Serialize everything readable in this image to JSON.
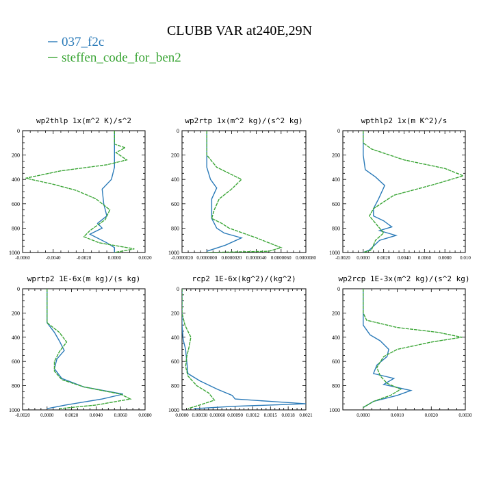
{
  "figure": {
    "title": "CLUBB VAR at240E,29N",
    "background": "#ffffff"
  },
  "legend": [
    {
      "label": "037_f2c",
      "color": "#2a7ab8"
    },
    {
      "label": "steffen_code_for_ben2",
      "color": "#3aa535"
    }
  ],
  "chart_data": [
    {
      "type": "line",
      "title": "wp2thlp   1x(m^2 K)/s^2",
      "xlim": [
        -0.006,
        0.002
      ],
      "ylim": [
        1000,
        0
      ],
      "xticks": [
        "-0.0060",
        "-0.0040",
        "-0.0020",
        "0.0000",
        "0.0020"
      ],
      "xtick_values": [
        -0.006,
        -0.004,
        -0.002,
        0.0,
        0.002
      ],
      "yticks": [
        "0",
        "200",
        "400",
        "600",
        "800",
        "1000"
      ],
      "ytick_values": [
        0,
        200,
        400,
        600,
        800,
        1000
      ],
      "series": [
        {
          "name": "037_f2c",
          "color": "#2a7ab8",
          "points": [
            [
              0.0,
              0
            ],
            [
              0.0,
              100
            ],
            [
              0.0,
              200
            ],
            [
              0.0,
              300
            ],
            [
              -0.0002,
              400
            ],
            [
              -0.0008,
              480
            ],
            [
              -0.0007,
              600
            ],
            [
              -0.0005,
              700
            ],
            [
              -0.0011,
              760
            ],
            [
              -0.0008,
              800
            ],
            [
              -0.0016,
              850
            ],
            [
              -0.0005,
              920
            ],
            [
              0.0,
              960
            ],
            [
              0.0,
              1000
            ]
          ]
        },
        {
          "name": "steffen_code_for_ben2",
          "color": "#3aa535",
          "points": [
            [
              0.0,
              0
            ],
            [
              0.0,
              110
            ],
            [
              0.0007,
              140
            ],
            [
              0.0001,
              180
            ],
            [
              0.0008,
              240
            ],
            [
              -0.0005,
              280
            ],
            [
              -0.0035,
              330
            ],
            [
              -0.0058,
              390
            ],
            [
              -0.004,
              440
            ],
            [
              -0.0025,
              490
            ],
            [
              -0.0012,
              560
            ],
            [
              -0.0003,
              650
            ],
            [
              -0.0006,
              730
            ],
            [
              -0.0016,
              820
            ],
            [
              -0.002,
              870
            ],
            [
              -0.001,
              920
            ],
            [
              0.0013,
              970
            ],
            [
              0.0,
              1000
            ]
          ]
        }
      ]
    },
    {
      "type": "line",
      "title": "wp2rtp   1x(m^2 kg)/(s^2 kg)",
      "xlim": [
        -2e-06,
        8e-06
      ],
      "ylim": [
        1000,
        0
      ],
      "xticks": [
        "-0.0000020",
        "0.0000000",
        "0.0000020",
        "0.0000040",
        "0.0000060",
        "0.0000080"
      ],
      "xtick_values": [
        -2e-06,
        0.0,
        2e-06,
        4e-06,
        6e-06,
        8e-06
      ],
      "yticks": [
        "0",
        "200",
        "400",
        "600",
        "800",
        "1000"
      ],
      "ytick_values": [
        0,
        200,
        400,
        600,
        800,
        1000
      ],
      "series": [
        {
          "name": "037_f2c",
          "color": "#2a7ab8",
          "points": [
            [
              0.0,
              0
            ],
            [
              0.0,
              200
            ],
            [
              0.0,
              300
            ],
            [
              3e-07,
              400
            ],
            [
              8e-07,
              470
            ],
            [
              4e-07,
              560
            ],
            [
              4e-07,
              720
            ],
            [
              8e-07,
              800
            ],
            [
              1.4e-06,
              840
            ],
            [
              2.8e-06,
              880
            ],
            [
              1.5e-06,
              940
            ],
            [
              0.0,
              990
            ]
          ]
        },
        {
          "name": "steffen_code_for_ben2",
          "color": "#3aa535",
          "points": [
            [
              0.0,
              0
            ],
            [
              0.0,
              200
            ],
            [
              8e-07,
              300
            ],
            [
              2.8e-06,
              400
            ],
            [
              2e-06,
              480
            ],
            [
              1e-06,
              560
            ],
            [
              6e-07,
              650
            ],
            [
              4e-07,
              720
            ],
            [
              1.2e-06,
              760
            ],
            [
              1.8e-06,
              800
            ],
            [
              4e-06,
              880
            ],
            [
              6e-06,
              960
            ],
            [
              5e-06,
              990
            ],
            [
              0.0,
              1000
            ]
          ]
        }
      ]
    },
    {
      "type": "line",
      "title": "wpthlp2   1x(m K^2)/s",
      "xlim": [
        -0.002,
        0.01
      ],
      "ylim": [
        1000,
        0
      ],
      "xticks": [
        "-0.0020",
        "0.0000",
        "0.0020",
        "0.0040",
        "0.0060",
        "0.0080",
        "0.010"
      ],
      "xtick_values": [
        -0.002,
        0.0,
        0.002,
        0.004,
        0.006,
        0.008,
        0.01
      ],
      "yticks": [
        "0",
        "200",
        "400",
        "600",
        "800",
        "1000"
      ],
      "ytick_values": [
        0,
        200,
        400,
        600,
        800,
        1000
      ],
      "series": [
        {
          "name": "037_f2c",
          "color": "#2a7ab8",
          "points": [
            [
              0.0,
              0
            ],
            [
              0.0,
              200
            ],
            [
              0.0002,
              320
            ],
            [
              0.0012,
              380
            ],
            [
              0.0021,
              450
            ],
            [
              0.0015,
              560
            ],
            [
              0.001,
              640
            ],
            [
              0.001,
              700
            ],
            [
              0.002,
              740
            ],
            [
              0.0028,
              790
            ],
            [
              0.0016,
              820
            ],
            [
              0.0032,
              860
            ],
            [
              0.0016,
              900
            ],
            [
              0.0006,
              980
            ],
            [
              0.0,
              1000
            ]
          ]
        },
        {
          "name": "steffen_code_for_ben2",
          "color": "#3aa535",
          "points": [
            [
              0.0,
              0
            ],
            [
              0.0,
              100
            ],
            [
              0.0008,
              150
            ],
            [
              0.004,
              240
            ],
            [
              0.008,
              310
            ],
            [
              0.0098,
              370
            ],
            [
              0.007,
              440
            ],
            [
              0.003,
              530
            ],
            [
              0.001,
              640
            ],
            [
              0.0006,
              700
            ],
            [
              0.0014,
              780
            ],
            [
              0.002,
              840
            ],
            [
              0.0012,
              900
            ],
            [
              0.0008,
              980
            ],
            [
              0.0,
              1000
            ]
          ]
        }
      ]
    },
    {
      "type": "line",
      "title": "wprtp2   1E-6x(m kg)/(s kg)",
      "xlim": [
        -0.002,
        0.008
      ],
      "ylim": [
        1000,
        0
      ],
      "xticks": [
        "-0.0020",
        "0.0000",
        "0.0020",
        "0.0040",
        "0.0060",
        "0.0080"
      ],
      "xtick_values": [
        -0.002,
        0.0,
        0.002,
        0.004,
        0.006,
        0.008
      ],
      "yticks": [
        "0",
        "200",
        "400",
        "600",
        "800",
        "1000"
      ],
      "ytick_values": [
        0,
        200,
        400,
        600,
        800,
        1000
      ],
      "series": [
        {
          "name": "037_f2c",
          "color": "#2a7ab8",
          "points": [
            [
              0.0,
              0
            ],
            [
              0.0,
              200
            ],
            [
              0.0,
              280
            ],
            [
              0.0006,
              360
            ],
            [
              0.001,
              430
            ],
            [
              0.0014,
              510
            ],
            [
              0.0008,
              580
            ],
            [
              0.0006,
              660
            ],
            [
              0.0012,
              740
            ],
            [
              0.003,
              810
            ],
            [
              0.0062,
              870
            ],
            [
              0.0045,
              910
            ],
            [
              0.0015,
              960
            ],
            [
              0.0,
              990
            ]
          ]
        },
        {
          "name": "steffen_code_for_ben2",
          "color": "#3aa535",
          "points": [
            [
              0.0,
              0
            ],
            [
              0.0,
              200
            ],
            [
              0.0,
              280
            ],
            [
              0.001,
              360
            ],
            [
              0.0016,
              440
            ],
            [
              0.001,
              520
            ],
            [
              0.0006,
              600
            ],
            [
              0.0006,
              680
            ],
            [
              0.0012,
              750
            ],
            [
              0.003,
              810
            ],
            [
              0.006,
              870
            ],
            [
              0.0068,
              910
            ],
            [
              0.004,
              960
            ],
            [
              0.001,
              990
            ]
          ]
        }
      ]
    },
    {
      "type": "line",
      "title": "rcp2   1E-6x(kg^2)/(kg^2)",
      "xlim": [
        0.0,
        0.0021
      ],
      "ylim": [
        1000,
        0
      ],
      "xticks": [
        "0.0000",
        "0.00030",
        "0.00060",
        "0.00090",
        "0.0012",
        "0.0015",
        "0.0018",
        "0.0021"
      ],
      "xtick_values": [
        0.0,
        0.0003,
        0.0006,
        0.0009,
        0.0012,
        0.0015,
        0.0018,
        0.0021
      ],
      "yticks": [
        "0",
        "200",
        "400",
        "600",
        "800",
        "1000"
      ],
      "ytick_values": [
        0,
        200,
        400,
        600,
        800,
        1000
      ],
      "series": [
        {
          "name": "037_f2c",
          "color": "#2a7ab8",
          "points": [
            [
              0.0,
              0
            ],
            [
              0.0,
              300
            ],
            [
              2e-05,
              420
            ],
            [
              6e-05,
              500
            ],
            [
              8e-05,
              600
            ],
            [
              0.0001,
              700
            ],
            [
              0.0003,
              760
            ],
            [
              0.0006,
              830
            ],
            [
              0.00085,
              880
            ],
            [
              0.0009,
              910
            ],
            [
              0.0015,
              930
            ],
            [
              0.0021,
              950
            ],
            [
              0.0009,
              970
            ],
            [
              0.0002,
              990
            ]
          ]
        },
        {
          "name": "steffen_code_for_ben2",
          "color": "#3aa535",
          "points": [
            [
              0.0,
              0
            ],
            [
              0.0,
              200
            ],
            [
              5e-05,
              300
            ],
            [
              0.00015,
              400
            ],
            [
              0.00012,
              480
            ],
            [
              8e-05,
              560
            ],
            [
              6e-05,
              640
            ],
            [
              0.0001,
              720
            ],
            [
              0.00025,
              800
            ],
            [
              0.00045,
              860
            ],
            [
              0.00055,
              920
            ],
            [
              0.0003,
              960
            ],
            [
              0.0001,
              990
            ]
          ]
        }
      ]
    },
    {
      "type": "line",
      "title": "wp2rcp   1E-3x(m^2 kg)/(s^2 kg)",
      "xlim": [
        -0.0006,
        0.003
      ],
      "ylim": [
        1000,
        0
      ],
      "xticks": [
        "0.0000",
        "0.0010",
        "0.0020",
        "0.0030"
      ],
      "xtick_values": [
        0.0,
        0.001,
        0.002,
        0.003
      ],
      "yticks": [
        "0",
        "200",
        "400",
        "600",
        "800",
        "1000"
      ],
      "ytick_values": [
        0,
        200,
        400,
        600,
        800,
        1000
      ],
      "series": [
        {
          "name": "037_f2c",
          "color": "#2a7ab8",
          "points": [
            [
              0.0,
              0
            ],
            [
              0.0,
              200
            ],
            [
              0.0,
              300
            ],
            [
              0.0002,
              380
            ],
            [
              0.0005,
              430
            ],
            [
              0.00075,
              500
            ],
            [
              0.0007,
              560
            ],
            [
              0.0004,
              630
            ],
            [
              0.0003,
              700
            ],
            [
              0.0009,
              740
            ],
            [
              0.0006,
              790
            ],
            [
              0.0014,
              840
            ],
            [
              0.001,
              880
            ],
            [
              0.0003,
              930
            ],
            [
              0.0,
              980
            ]
          ]
        },
        {
          "name": "steffen_code_for_ben2",
          "color": "#3aa535",
          "points": [
            [
              0.0,
              0
            ],
            [
              0.0,
              200
            ],
            [
              0.0001,
              260
            ],
            [
              0.001,
              320
            ],
            [
              0.0022,
              360
            ],
            [
              0.0029,
              400
            ],
            [
              0.002,
              440
            ],
            [
              0.001,
              500
            ],
            [
              0.0006,
              560
            ],
            [
              0.0004,
              650
            ],
            [
              0.0005,
              720
            ],
            [
              0.0007,
              780
            ],
            [
              0.0011,
              830
            ],
            [
              0.0008,
              880
            ],
            [
              0.0003,
              930
            ],
            [
              0.0,
              980
            ]
          ]
        }
      ]
    }
  ]
}
